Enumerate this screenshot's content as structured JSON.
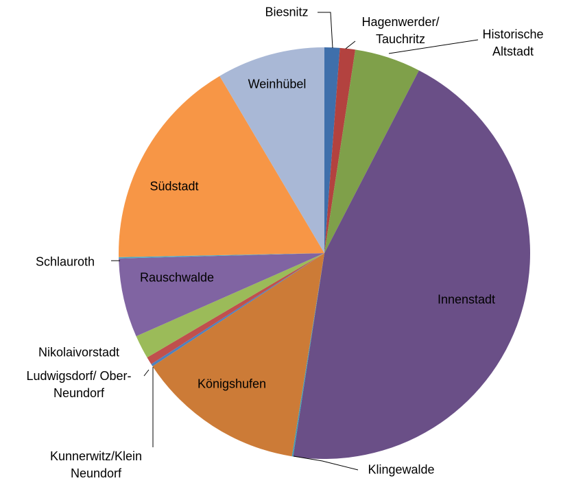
{
  "chart_data": {
    "type": "pie",
    "categories": [
      "Biesnitz",
      "Hagenwerder/\nTauchritz",
      "Historische\nAltstadt",
      "Innenstadt",
      "Klingewalde",
      "Königshufen",
      "Kunnerwitz/Klein\nNeundorf",
      "Ludwigsdorf/ Ober-\nNeundorf",
      "Nikolaivorstadt",
      "Rauschwalde",
      "Schlauroth",
      "Südstadt",
      "Weinhübel"
    ],
    "values": [
      1.2,
      1.2,
      5.2,
      44.8,
      0.1,
      13.2,
      0.2,
      0.6,
      1.85,
      6.2,
      0.1,
      16.8,
      8.5
    ],
    "colors": [
      "#3f6fab",
      "#b3423f",
      "#7fa04a",
      "#6a4f87",
      "#3f9cb5",
      "#cc7b37",
      "#4f81bd",
      "#c0504d",
      "#9bbb59",
      "#8064a2",
      "#4bacc6",
      "#f79646",
      "#a9b8d6"
    ]
  }
}
